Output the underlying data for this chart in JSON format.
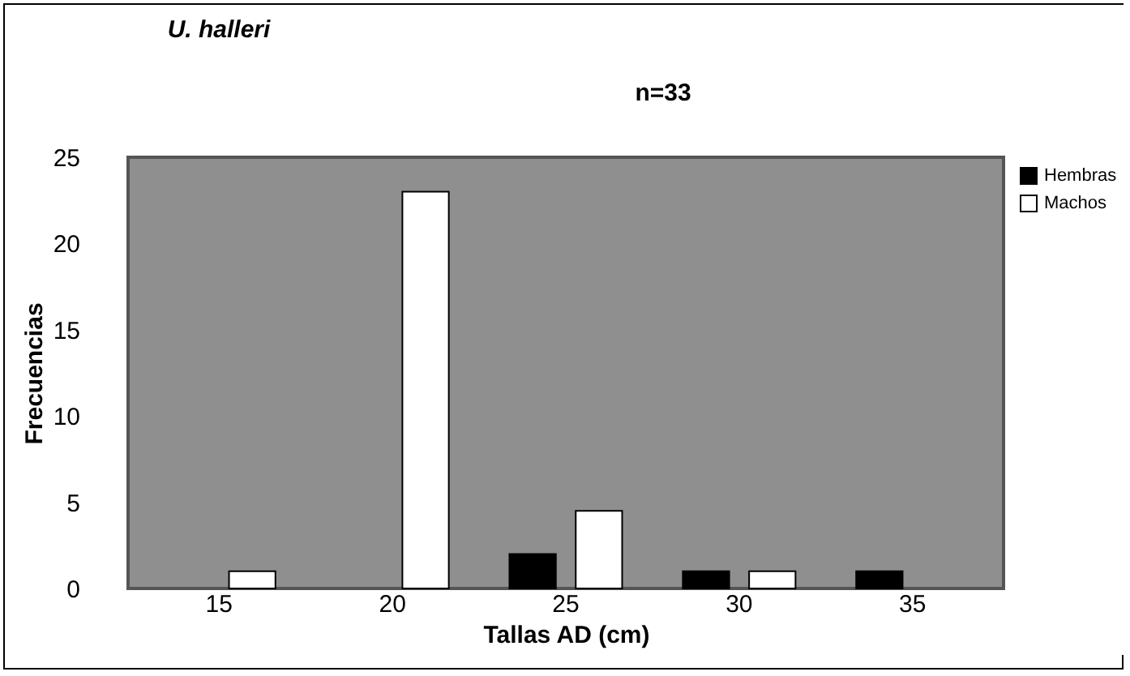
{
  "chart_data": {
    "type": "bar",
    "title": "U. halleri",
    "annotations": [
      "n=33"
    ],
    "xlabel": "Tallas AD (cm)",
    "ylabel": "Frecuencias",
    "categories": [
      "15",
      "20",
      "25",
      "30",
      "35"
    ],
    "series": [
      {
        "name": "Hembras",
        "color": "#000000",
        "values": [
          null,
          null,
          2,
          1,
          1
        ]
      },
      {
        "name": "Machos",
        "color": "#ffffff",
        "values": [
          1,
          23,
          4.5,
          1,
          null
        ]
      }
    ],
    "ylim": [
      0,
      25
    ],
    "yticks": [
      0,
      5,
      10,
      15,
      20,
      25
    ],
    "grid": false,
    "legend": "right"
  }
}
